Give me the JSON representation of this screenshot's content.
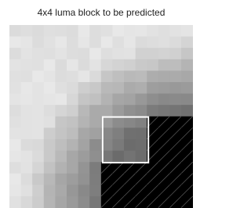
{
  "title": "4x4 luma block to be predicted"
}
